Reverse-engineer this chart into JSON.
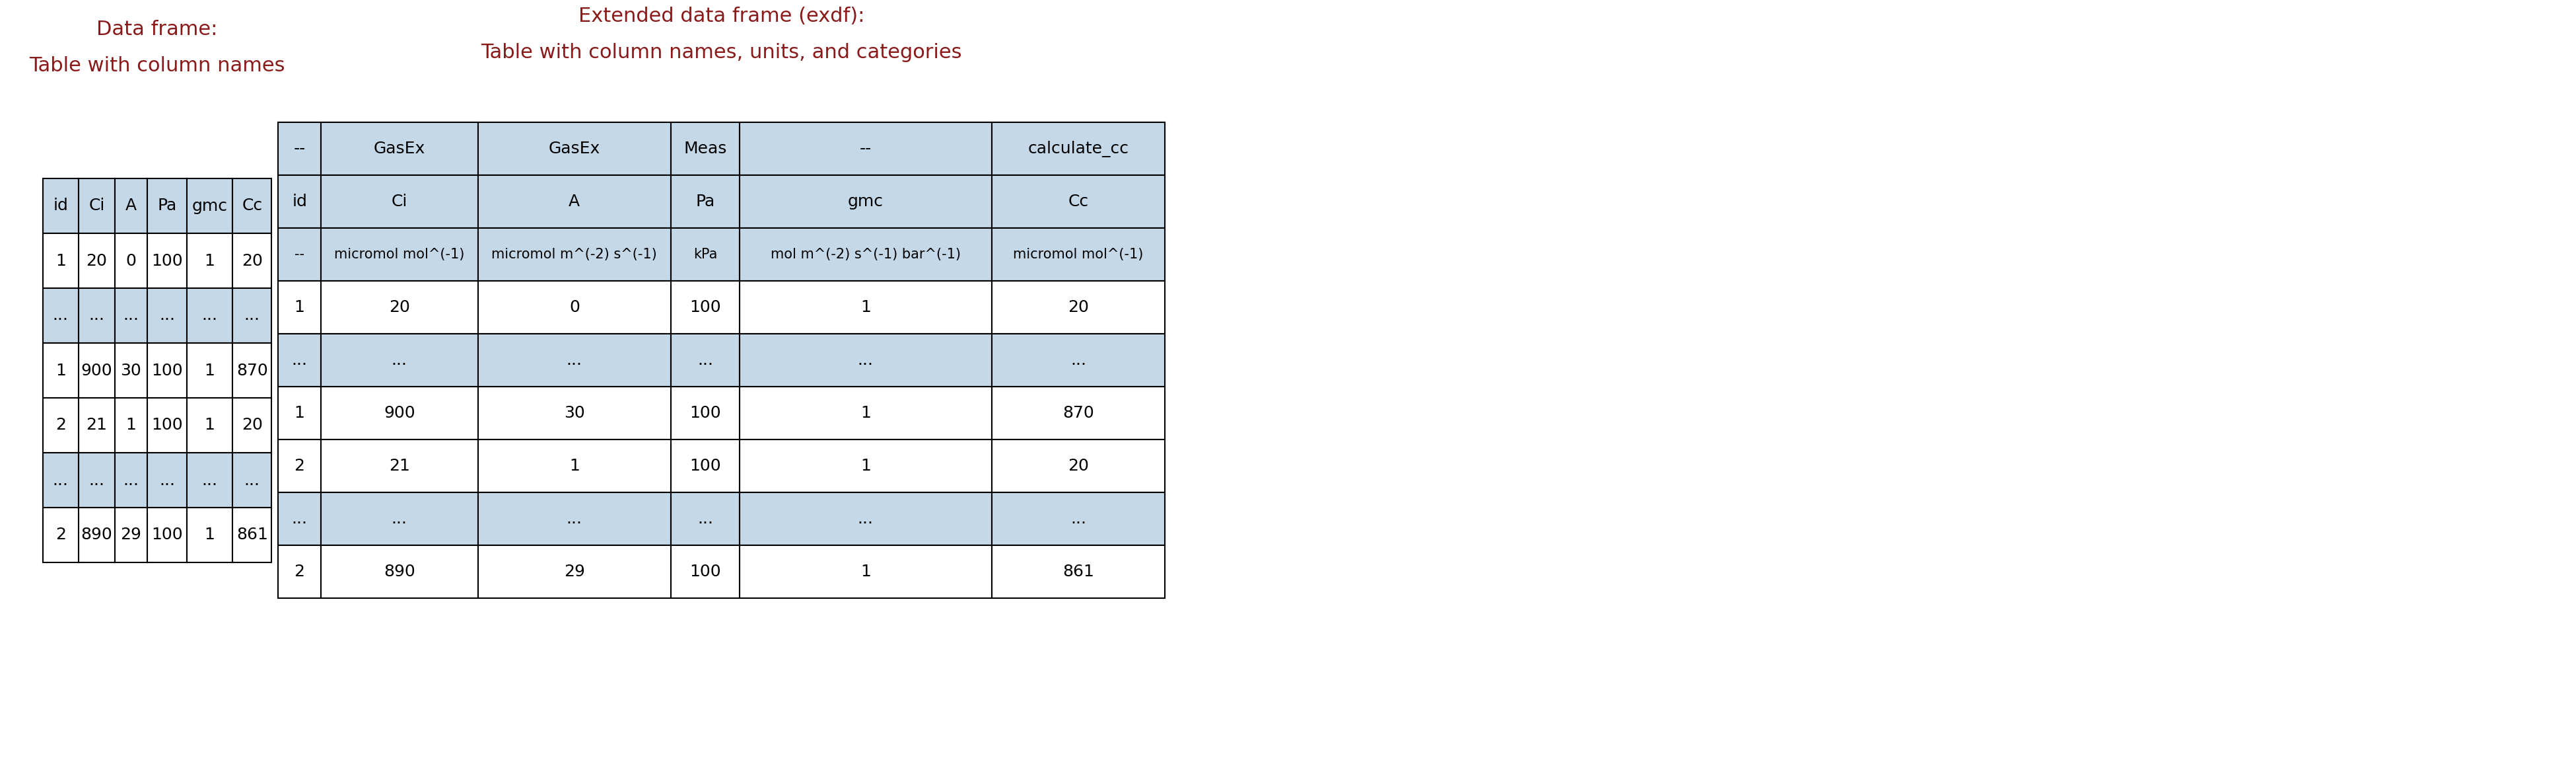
{
  "title_left_line1": "Data frame:",
  "title_left_line2": "Table with column names",
  "title_right_line1": "Extended data frame (exdf):",
  "title_right_line2": "Table with column names, units, and categories",
  "title_color": "#8B1A1A",
  "title_fontsize": 22,
  "subtitle_fontsize": 22,
  "left_table": {
    "header": [
      "id",
      "Ci",
      "A",
      "Pa",
      "gmc",
      "Cc"
    ],
    "rows": [
      [
        "1",
        "20",
        "0",
        "100",
        "1",
        "20"
      ],
      [
        "...",
        "...",
        "...",
        "...",
        "...",
        "..."
      ],
      [
        "1",
        "900",
        "30",
        "100",
        "1",
        "870"
      ],
      [
        "2",
        "21",
        "1",
        "100",
        "1",
        "20"
      ],
      [
        "...",
        "...",
        "...",
        "...",
        "...",
        "..."
      ],
      [
        "2",
        "890",
        "29",
        "100",
        "1",
        "861"
      ]
    ],
    "header_bg": "#C5D8E8",
    "row_bg": "#FFFFFF",
    "text_color": "#000000",
    "border_color": "#000000",
    "fontsize": 18
  },
  "right_table": {
    "row0": [
      "--",
      "GasEx",
      "GasEx",
      "Meas",
      "--",
      "calculate_cc"
    ],
    "row1": [
      "id",
      "Ci",
      "A",
      "Pa",
      "gmc",
      "Cc"
    ],
    "row2": [
      "--",
      "micromol mol^(-1)",
      "micromol m^(-2) s^(-1)",
      "kPa",
      "mol m^(-2) s^(-1) bar^(-1)",
      "micromol mol^(-1)"
    ],
    "rows": [
      [
        "1",
        "20",
        "0",
        "100",
        "1",
        "20"
      ],
      [
        "...",
        "...",
        "...",
        "...",
        "...",
        "..."
      ],
      [
        "1",
        "900",
        "30",
        "100",
        "1",
        "870"
      ],
      [
        "2",
        "21",
        "1",
        "100",
        "1",
        "20"
      ],
      [
        "...",
        "...",
        "...",
        "...",
        "...",
        "..."
      ],
      [
        "2",
        "890",
        "29",
        "100",
        "1",
        "861"
      ]
    ],
    "header_bg": "#C5D8E8",
    "row_bg": "#FFFFFF",
    "text_color": "#000000",
    "border_color": "#000000",
    "fontsize": 18,
    "units_fontsize": 15
  },
  "bg_color": "#FFFFFF"
}
